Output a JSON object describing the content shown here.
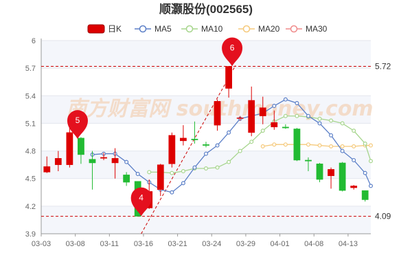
{
  "chart_data": {
    "type": "candlestick",
    "title": "顺灏股份(002565)",
    "watermark": "南方财富网 southmoney.com",
    "y_ticks": [
      6,
      5.7,
      5.4,
      5.1,
      4.8,
      4.5,
      4.2,
      3.9
    ],
    "ylim": [
      3.9,
      6.0
    ],
    "x_ticks": [
      "03-03",
      "03-08",
      "03-11",
      "03-16",
      "03-21",
      "03-24",
      "03-29",
      "04-01",
      "04-08",
      "04-13"
    ],
    "colors": {
      "up": "#dd0000",
      "down": "#22bb33",
      "ma5": "#5b7fc7",
      "ma10": "#a6d58c",
      "ma20": "#f5c97a",
      "ma30": "#f08a8a",
      "ref": "#cc0000"
    },
    "legend": [
      {
        "label": "日K",
        "key": "k"
      },
      {
        "label": "MA5",
        "key": "ma5"
      },
      {
        "label": "MA10",
        "key": "ma10"
      },
      {
        "label": "MA20",
        "key": "ma20"
      },
      {
        "label": "MA30",
        "key": "ma30"
      }
    ],
    "candles": [
      {
        "open": 4.57,
        "close": 4.63,
        "high": 4.74,
        "low": 4.56
      },
      {
        "open": 4.65,
        "close": 4.72,
        "high": 4.8,
        "low": 4.58
      },
      {
        "open": 4.65,
        "close": 5.0,
        "high": 5.15,
        "low": 4.62
      },
      {
        "open": 4.94,
        "close": 4.76,
        "high": 4.95,
        "low": 4.66
      },
      {
        "open": 4.71,
        "close": 4.67,
        "high": 4.8,
        "low": 4.38
      },
      {
        "open": 4.72,
        "close": 4.73,
        "high": 4.78,
        "low": 4.7
      },
      {
        "open": 4.67,
        "close": 4.72,
        "high": 4.83,
        "low": 4.5
      },
      {
        "open": 4.54,
        "close": 4.46,
        "high": 4.57,
        "low": 4.42
      },
      {
        "open": 4.47,
        "close": 4.09,
        "high": 4.47,
        "low": 4.09
      },
      {
        "open": 4.18,
        "close": 4.36,
        "high": 4.49,
        "low": 4.17
      },
      {
        "open": 4.38,
        "close": 4.65,
        "high": 4.66,
        "low": 4.31
      },
      {
        "open": 4.66,
        "close": 4.97,
        "high": 5.0,
        "low": 4.62
      },
      {
        "open": 4.91,
        "close": 4.94,
        "high": 5.08,
        "low": 4.86
      },
      {
        "open": 4.93,
        "close": 4.92,
        "high": 5.12,
        "low": 4.88
      },
      {
        "open": 4.87,
        "close": 4.86,
        "high": 4.9,
        "low": 4.84
      },
      {
        "open": 5.08,
        "close": 5.34,
        "high": 5.36,
        "low": 5.02
      },
      {
        "open": 5.48,
        "close": 5.72,
        "high": 5.72,
        "low": 5.38
      },
      {
        "open": 5.16,
        "close": 5.16,
        "high": 5.18,
        "low": 5.13
      },
      {
        "open": 5.0,
        "close": 5.35,
        "high": 5.5,
        "low": 4.96
      },
      {
        "open": 5.18,
        "close": 5.27,
        "high": 5.39,
        "low": 5.09
      },
      {
        "open": 5.06,
        "close": 5.11,
        "high": 5.24,
        "low": 5.03
      },
      {
        "open": 5.06,
        "close": 5.05,
        "high": 5.09,
        "low": 5.04
      },
      {
        "open": 5.04,
        "close": 4.7,
        "high": 5.05,
        "low": 4.69
      },
      {
        "open": 4.7,
        "close": 4.69,
        "high": 4.73,
        "low": 4.58
      },
      {
        "open": 4.66,
        "close": 4.49,
        "high": 4.67,
        "low": 4.46
      },
      {
        "open": 4.53,
        "close": 4.6,
        "high": 4.62,
        "low": 4.39
      },
      {
        "open": 4.67,
        "close": 4.37,
        "high": 4.68,
        "low": 4.36
      },
      {
        "open": 4.4,
        "close": 4.42,
        "high": 4.43,
        "low": 4.38
      },
      {
        "open": 4.37,
        "close": 4.27,
        "high": 4.37,
        "low": 4.25
      }
    ],
    "x_tick_positions": [
      0,
      3,
      6,
      9,
      12,
      15,
      18,
      21,
      24,
      27
    ],
    "ma5": [
      null,
      null,
      null,
      null,
      4.76,
      4.77,
      4.77,
      4.68,
      4.55,
      4.46,
      4.38,
      4.35,
      4.45,
      4.62,
      4.77,
      4.86,
      5.0,
      5.15,
      5.18,
      5.21,
      5.29,
      5.36,
      5.32,
      5.18,
      5.1,
      4.97,
      4.8,
      4.7,
      4.56
    ],
    "ma10": [
      null,
      null,
      null,
      null,
      null,
      null,
      null,
      null,
      null,
      4.57,
      4.57,
      4.56,
      4.58,
      4.61,
      4.61,
      4.62,
      4.68,
      4.8,
      4.9,
      5.02,
      5.12,
      5.18,
      5.18,
      5.17,
      5.15,
      5.13,
      5.1,
      5.02,
      4.88
    ],
    "ma20": [
      null,
      null,
      null,
      null,
      null,
      null,
      null,
      null,
      null,
      null,
      null,
      null,
      null,
      null,
      null,
      null,
      null,
      null,
      null,
      4.85,
      4.87,
      4.87,
      4.87,
      4.87,
      4.86,
      4.85,
      4.85,
      4.85,
      4.86
    ],
    "ma30": [],
    "ma10_tail": 4.69,
    "ma5_tail": 4.42,
    "ma20_tail": 4.86,
    "ref_lines": [
      {
        "value": 5.72,
        "label": "5.72"
      },
      {
        "value": 4.09,
        "label": "4.09"
      }
    ],
    "pins": [
      {
        "label": "5",
        "index": 2.7,
        "value": 4.93
      },
      {
        "label": "4",
        "index": 8.3,
        "value": 4.09
      },
      {
        "label": "6",
        "index": 16.3,
        "value": 5.72
      }
    ],
    "trend_line": {
      "from_index": 8.3,
      "from_value": 3.9,
      "to_index": 16.6,
      "to_value": 5.73
    }
  }
}
